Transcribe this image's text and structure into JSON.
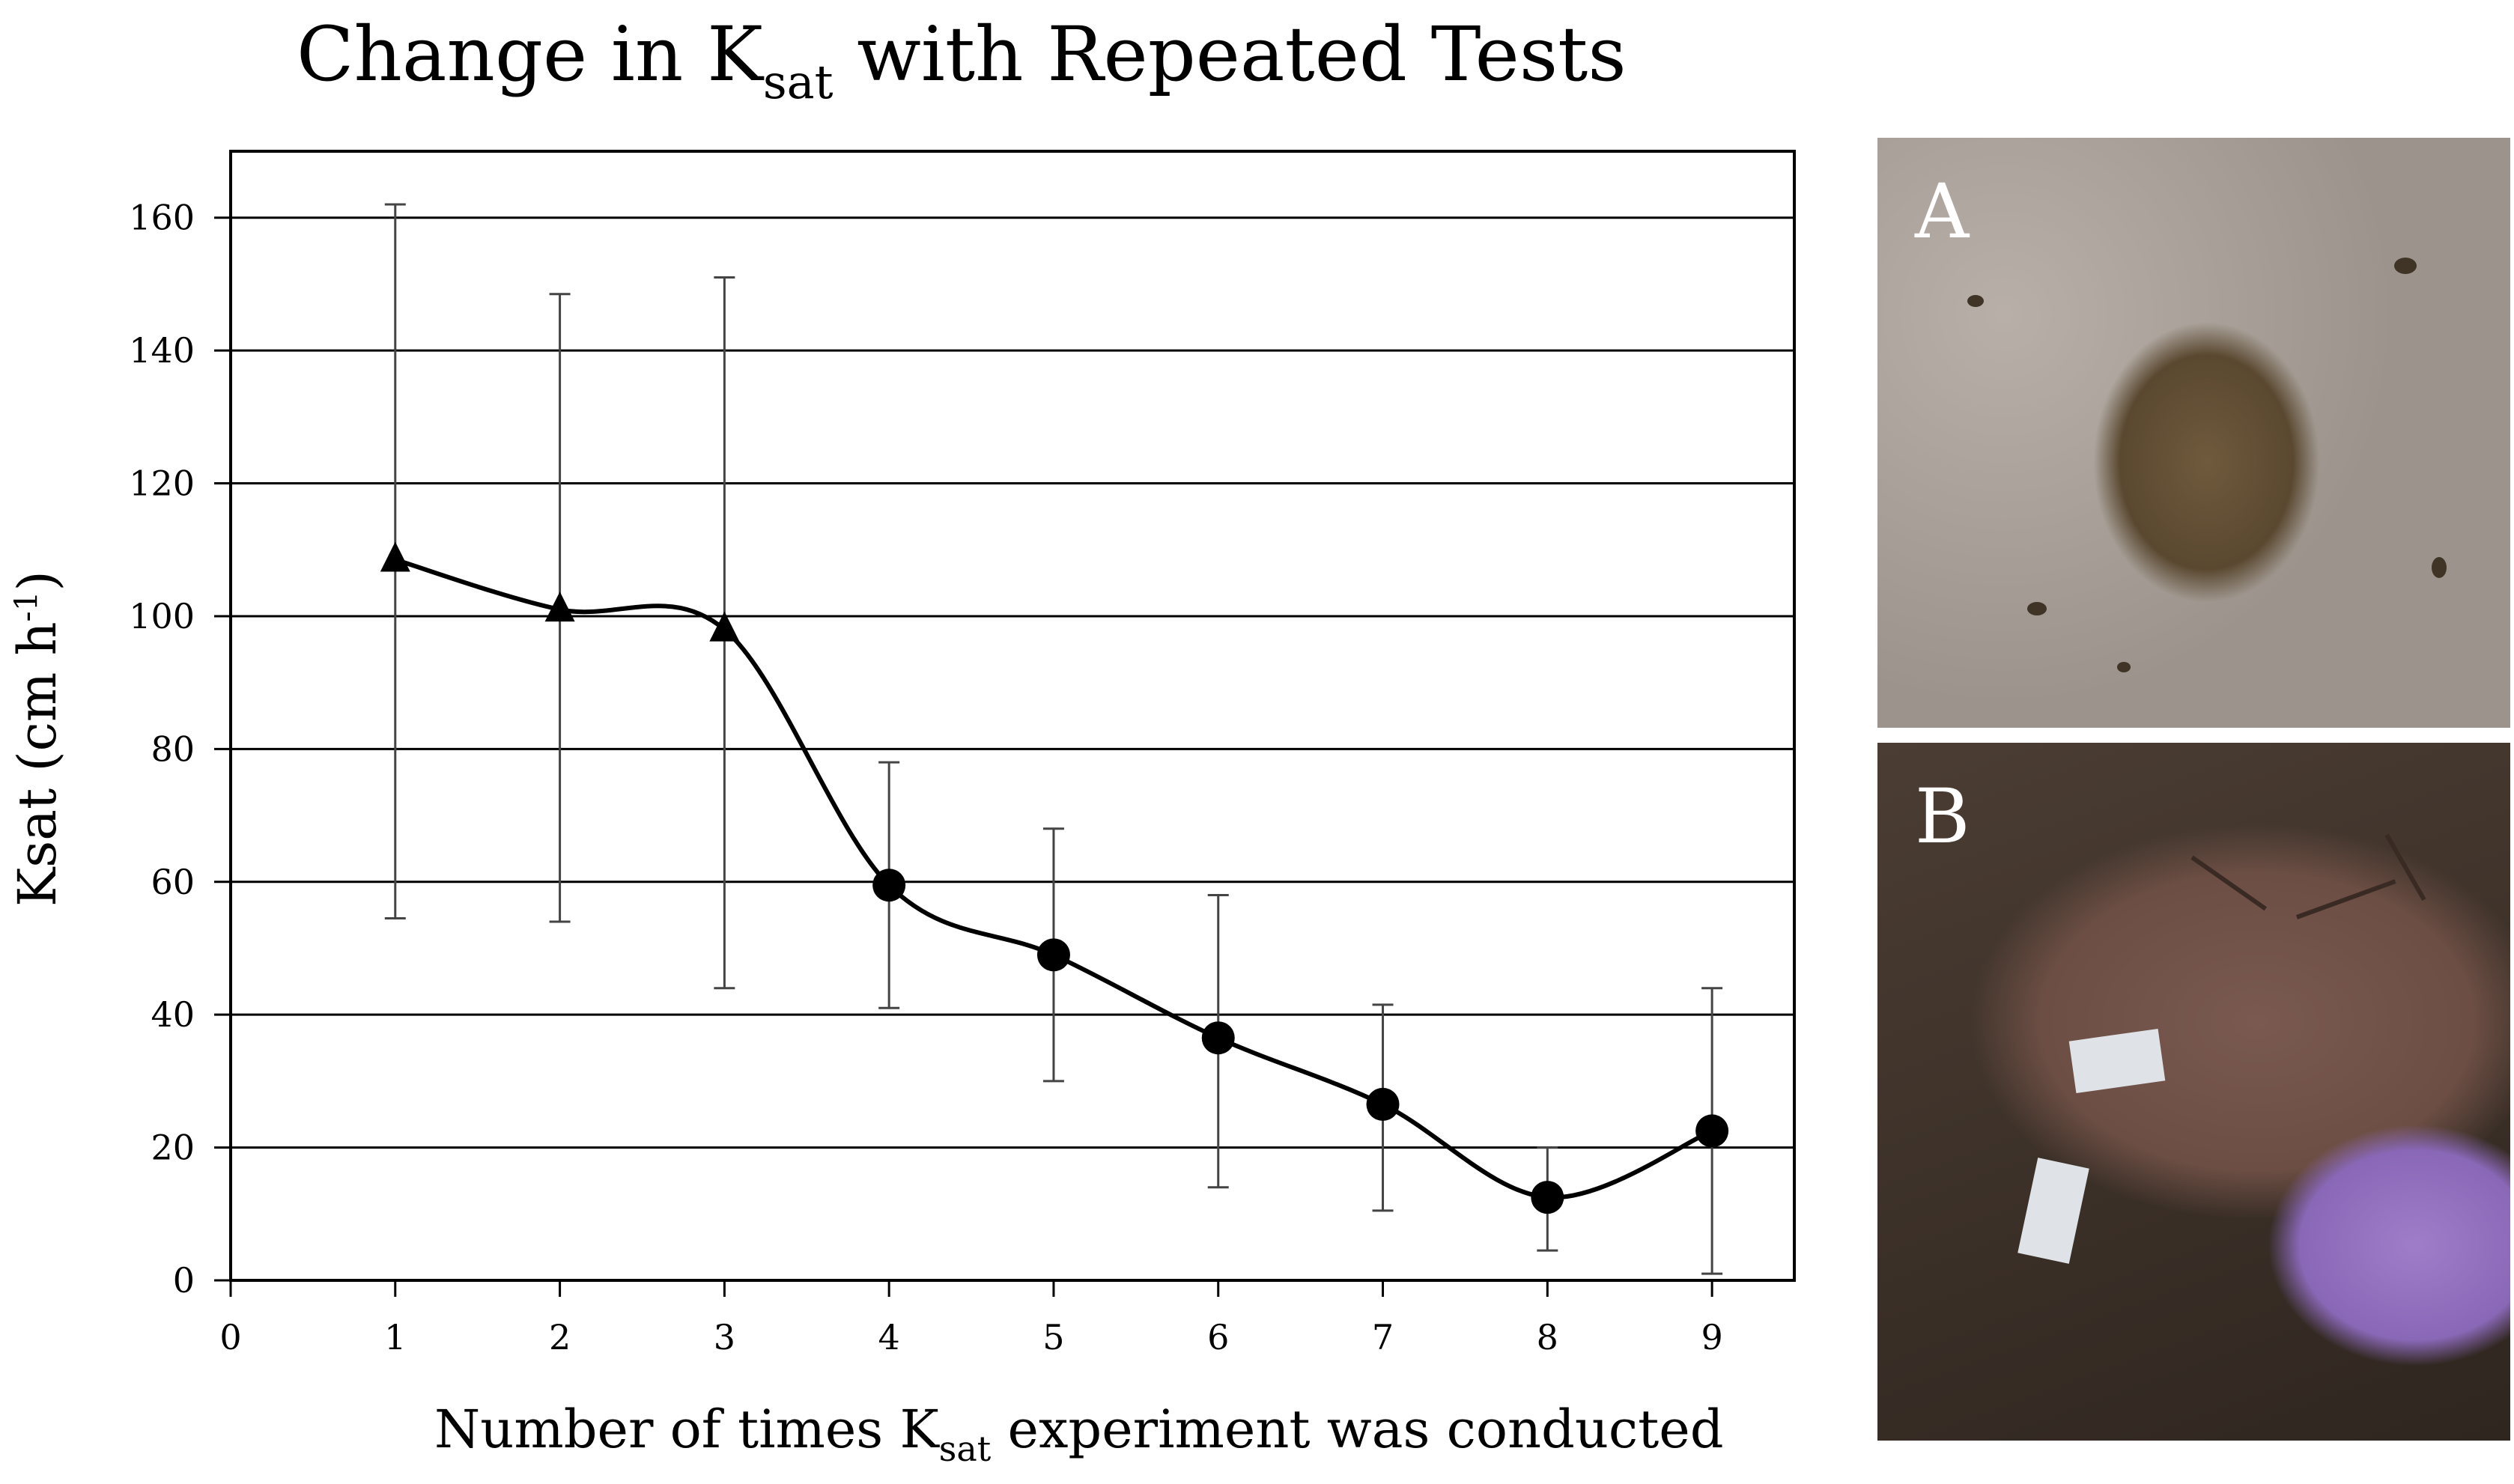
{
  "title": {
    "main": "Change in K",
    "sub": "sat",
    "rest": " with Repeated Tests"
  },
  "photos": {
    "a_label": "A",
    "b_label": "B"
  },
  "chart_data": {
    "type": "line",
    "title": "Change in Ksat with Repeated Tests",
    "xlabel": "Number of times Ksat experiment was conducted",
    "ylabel": "Ksat (cm h-1)",
    "xlabel_parts": {
      "pre": "Number of times K",
      "sub": "sat",
      "post": " experiment was conducted"
    },
    "ylabel_parts": {
      "pre": "Ksat (cm h",
      "sup": "-1",
      "post": ")"
    },
    "xlim": [
      0,
      9.5
    ],
    "ylim": [
      0,
      170
    ],
    "xticks": [
      0,
      1,
      2,
      3,
      4,
      5,
      6,
      7,
      8,
      9
    ],
    "yticks": [
      0,
      20,
      40,
      60,
      80,
      100,
      120,
      140,
      160
    ],
    "grid": "horizontal",
    "series": [
      {
        "name": "Ksat",
        "x": [
          1,
          2,
          3,
          4,
          5,
          6,
          7,
          8,
          9
        ],
        "y": [
          108.5,
          101,
          98,
          59.5,
          49,
          36.5,
          26.5,
          12.5,
          22.5
        ],
        "err_low": [
          54.5,
          54,
          44,
          41,
          30,
          14,
          10.5,
          4.5,
          1
        ],
        "err_high": [
          162,
          148.5,
          151,
          78,
          68,
          58,
          41.5,
          20,
          44
        ],
        "markers": [
          "triangle",
          "triangle",
          "triangle",
          "circle",
          "circle",
          "circle",
          "circle",
          "circle",
          "circle"
        ]
      }
    ]
  }
}
